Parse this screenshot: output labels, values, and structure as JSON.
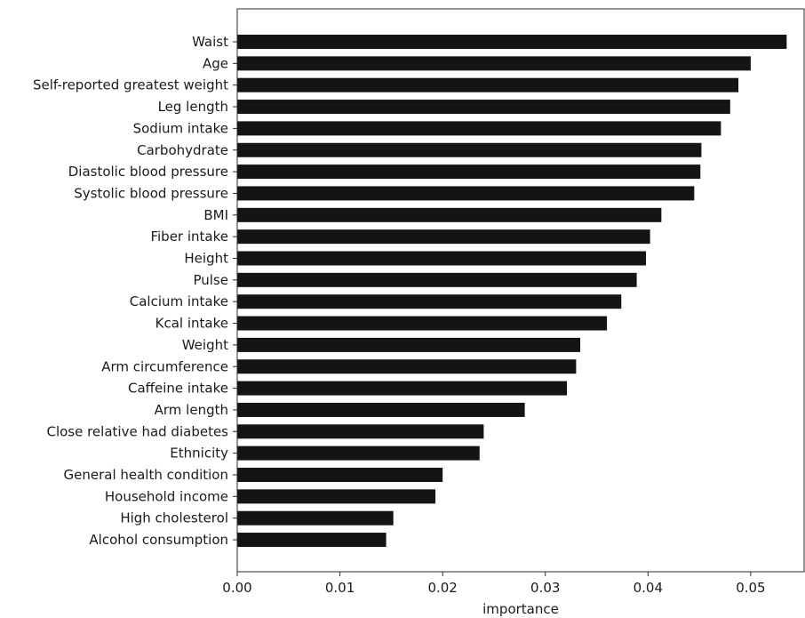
{
  "chart_data": {
    "type": "bar",
    "orientation": "horizontal",
    "categories": [
      "Waist",
      "Age",
      "Self-reported greatest weight",
      "Leg length",
      "Sodium intake",
      "Carbohydrate",
      "Diastolic blood pressure",
      "Systolic blood pressure",
      "BMI",
      "Fiber intake",
      "Height",
      "Pulse",
      "Calcium intake",
      "Kcal intake",
      "Weight",
      "Arm circumference",
      "Caffeine intake",
      "Arm length",
      "Close relative had diabetes",
      "Ethnicity",
      "General health condition",
      "Household income",
      "High cholesterol",
      "Alcohol consumption"
    ],
    "values": [
      0.0535,
      0.05,
      0.0488,
      0.048,
      0.0471,
      0.0452,
      0.0451,
      0.0445,
      0.0413,
      0.0402,
      0.0398,
      0.0389,
      0.0374,
      0.036,
      0.0334,
      0.033,
      0.0321,
      0.028,
      0.024,
      0.0236,
      0.02,
      0.0193,
      0.0152,
      0.0145
    ],
    "xlabel": "importance",
    "ylabel": "",
    "title": "",
    "xlim": [
      0.0,
      0.0552
    ],
    "xticks": [
      0.0,
      0.01,
      0.02,
      0.03,
      0.04,
      0.05
    ],
    "xtick_labels": [
      "0.00",
      "0.01",
      "0.02",
      "0.03",
      "0.04",
      "0.05"
    ],
    "bar_color": "#141414",
    "grid": false
  }
}
